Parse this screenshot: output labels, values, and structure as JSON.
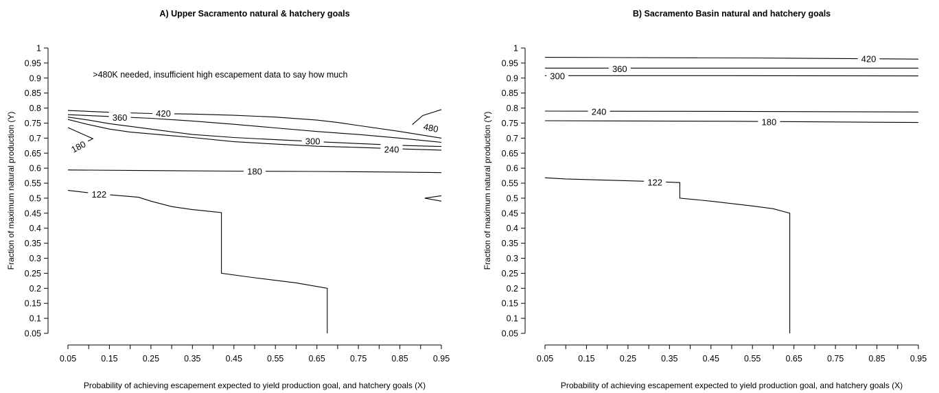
{
  "chart_data": [
    {
      "type": "contour",
      "title": "A) Upper Sacramento natural & hatchery goals",
      "xlabel": "Probability of achieving escapement expected to yield production goal, and hatchery goals (X)",
      "ylabel": "Fraction of maximum natural production (Y)",
      "xlim": [
        0.05,
        0.95
      ],
      "ylim": [
        0.05,
        1.0
      ],
      "xticks": [
        "0.05",
        "0.15",
        "0.25",
        "0.35",
        "0.45",
        "0.55",
        "0.65",
        "0.75",
        "0.85",
        "0.95"
      ],
      "yticks": [
        "0.05",
        "0.1",
        "0.15",
        "0.2",
        "0.25",
        "0.3",
        "0.35",
        "0.4",
        "0.45",
        "0.5",
        "0.55",
        "0.6",
        "0.65",
        "0.7",
        "0.75",
        "0.8",
        "0.85",
        "0.9",
        "0.95",
        "1"
      ],
      "annotation": ">480K needed, insufficient high escapement data to say how much",
      "contours": [
        {
          "level": "420",
          "points": [
            [
              0.05,
              0.792
            ],
            [
              0.15,
              0.786
            ],
            [
              0.25,
              0.782
            ],
            [
              0.35,
              0.78
            ],
            [
              0.45,
              0.776
            ],
            [
              0.55,
              0.77
            ],
            [
              0.65,
              0.76
            ],
            [
              0.7,
              0.752
            ],
            [
              0.75,
              0.742
            ],
            [
              0.85,
              0.722
            ],
            [
              0.95,
              0.7
            ]
          ],
          "label_at": [
            0.28,
            0.783
          ]
        },
        {
          "level": "360",
          "points": [
            [
              0.05,
              0.778
            ],
            [
              0.15,
              0.772
            ],
            [
              0.25,
              0.766
            ],
            [
              0.35,
              0.757
            ],
            [
              0.45,
              0.746
            ],
            [
              0.55,
              0.734
            ],
            [
              0.65,
              0.722
            ],
            [
              0.75,
              0.712
            ],
            [
              0.85,
              0.7
            ],
            [
              0.95,
              0.686
            ]
          ],
          "label_at": [
            0.175,
            0.769
          ]
        },
        {
          "level": "300",
          "points": [
            [
              0.05,
              0.77
            ],
            [
              0.1,
              0.76
            ],
            [
              0.15,
              0.748
            ],
            [
              0.25,
              0.73
            ],
            [
              0.35,
              0.712
            ],
            [
              0.45,
              0.702
            ],
            [
              0.55,
              0.695
            ],
            [
              0.65,
              0.688
            ],
            [
              0.75,
              0.682
            ],
            [
              0.85,
              0.676
            ],
            [
              0.95,
              0.672
            ]
          ],
          "label_at": [
            0.64,
            0.69
          ]
        },
        {
          "level": "240",
          "points": [
            [
              0.05,
              0.762
            ],
            [
              0.1,
              0.745
            ],
            [
              0.15,
              0.73
            ],
            [
              0.2,
              0.72
            ],
            [
              0.25,
              0.714
            ],
            [
              0.35,
              0.702
            ],
            [
              0.45,
              0.688
            ],
            [
              0.55,
              0.68
            ],
            [
              0.65,
              0.673
            ],
            [
              0.75,
              0.669
            ],
            [
              0.85,
              0.664
            ],
            [
              0.95,
              0.66
            ]
          ],
          "label_at": [
            0.83,
            0.663
          ]
        },
        {
          "level": "180",
          "points": [
            [
              0.05,
              0.735
            ],
            [
              0.11,
              0.698
            ],
            [
              0.07,
              0.67
            ]
          ],
          "label_at": [
            0.075,
            0.672
          ],
          "label_rotate": -28
        },
        {
          "level": "180",
          "points": [
            [
              0.05,
              0.594
            ],
            [
              0.25,
              0.592
            ],
            [
              0.45,
              0.59
            ],
            [
              0.65,
              0.589
            ],
            [
              0.85,
              0.587
            ],
            [
              0.95,
              0.585
            ]
          ],
          "label_at": [
            0.5,
            0.59
          ]
        },
        {
          "level": "480",
          "points": [
            [
              0.88,
              0.745
            ],
            [
              0.905,
              0.775
            ],
            [
              0.95,
              0.795
            ]
          ],
          "label_at": [
            0.925,
            0.735
          ],
          "label_rotate": 12
        },
        {
          "level": "",
          "points": [
            [
              0.95,
              0.508
            ],
            [
              0.91,
              0.5
            ],
            [
              0.95,
              0.49
            ]
          ]
        },
        {
          "level": "122",
          "points": [
            [
              0.05,
              0.526
            ],
            [
              0.12,
              0.515
            ],
            [
              0.22,
              0.503
            ],
            [
              0.25,
              0.49
            ],
            [
              0.3,
              0.472
            ],
            [
              0.35,
              0.462
            ],
            [
              0.4,
              0.455
            ],
            [
              0.42,
              0.452
            ],
            [
              0.42,
              0.25
            ],
            [
              0.5,
              0.235
            ],
            [
              0.6,
              0.218
            ],
            [
              0.675,
              0.2
            ],
            [
              0.675,
              0.05
            ]
          ],
          "label_at": [
            0.125,
            0.514
          ]
        }
      ]
    },
    {
      "type": "contour",
      "title": "B) Sacramento Basin natural and hatchery goals",
      "xlabel": "Probability of achieving escapement expected to yield production goal, and hatchery goals (X)",
      "ylabel": "Fraction of maximum natural production (Y)",
      "xlim": [
        0.05,
        0.95
      ],
      "ylim": [
        0.05,
        1.0
      ],
      "xticks": [
        "0.05",
        "0.15",
        "0.25",
        "0.35",
        "0.45",
        "0.55",
        "0.65",
        "0.75",
        "0.85",
        "0.95"
      ],
      "yticks": [
        "0.05",
        "0.1",
        "0.15",
        "0.2",
        "0.25",
        "0.3",
        "0.35",
        "0.4",
        "0.45",
        "0.5",
        "0.55",
        "0.6",
        "0.65",
        "0.7",
        "0.75",
        "0.8",
        "0.85",
        "0.9",
        "0.95",
        "1"
      ],
      "contours": [
        {
          "level": "420",
          "points": [
            [
              0.05,
              0.969
            ],
            [
              0.55,
              0.967
            ],
            [
              0.95,
              0.963
            ]
          ],
          "label_at": [
            0.83,
            0.965
          ]
        },
        {
          "level": "360",
          "points": [
            [
              0.05,
              0.933
            ],
            [
              0.5,
              0.933
            ],
            [
              0.95,
              0.933
            ]
          ],
          "label_at": [
            0.23,
            0.932
          ]
        },
        {
          "level": "300",
          "points": [
            [
              0.05,
              0.908
            ],
            [
              0.5,
              0.908
            ],
            [
              0.95,
              0.907
            ]
          ],
          "label_at": [
            0.08,
            0.907
          ]
        },
        {
          "level": "240",
          "points": [
            [
              0.05,
              0.79
            ],
            [
              0.5,
              0.789
            ],
            [
              0.95,
              0.787
            ]
          ],
          "label_at": [
            0.18,
            0.789
          ]
        },
        {
          "level": "180",
          "points": [
            [
              0.05,
              0.758
            ],
            [
              0.5,
              0.756
            ],
            [
              0.95,
              0.752
            ]
          ],
          "label_at": [
            0.59,
            0.755
          ]
        },
        {
          "level": "122",
          "points": [
            [
              0.05,
              0.568
            ],
            [
              0.1,
              0.564
            ],
            [
              0.2,
              0.56
            ],
            [
              0.3,
              0.556
            ],
            [
              0.375,
              0.552
            ],
            [
              0.375,
              0.5
            ],
            [
              0.45,
              0.49
            ],
            [
              0.55,
              0.474
            ],
            [
              0.6,
              0.465
            ],
            [
              0.64,
              0.45
            ],
            [
              0.64,
              0.05
            ]
          ],
          "label_at": [
            0.315,
            0.554
          ]
        }
      ]
    }
  ]
}
